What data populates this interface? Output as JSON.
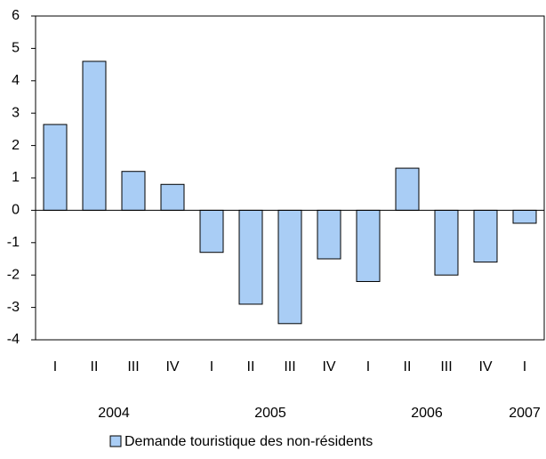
{
  "chart_data": {
    "type": "bar",
    "categories": [
      "I",
      "II",
      "III",
      "IV",
      "I",
      "II",
      "III",
      "IV",
      "I",
      "II",
      "III",
      "IV",
      "I"
    ],
    "years": [
      "2004",
      "2005",
      "2006",
      "2007"
    ],
    "series": [
      {
        "name": "Demande touristique des non-résidents",
        "color": "#a9cdf5",
        "values": [
          2.65,
          4.6,
          1.2,
          0.8,
          -1.3,
          -2.9,
          -3.5,
          -1.5,
          -2.2,
          1.3,
          -2.0,
          -1.6,
          -0.4
        ]
      }
    ],
    "ylim": [
      -4,
      6
    ],
    "yticks": [
      -4,
      -3,
      -2,
      -1,
      0,
      1,
      2,
      3,
      4,
      5,
      6
    ],
    "legend": "bottom"
  }
}
